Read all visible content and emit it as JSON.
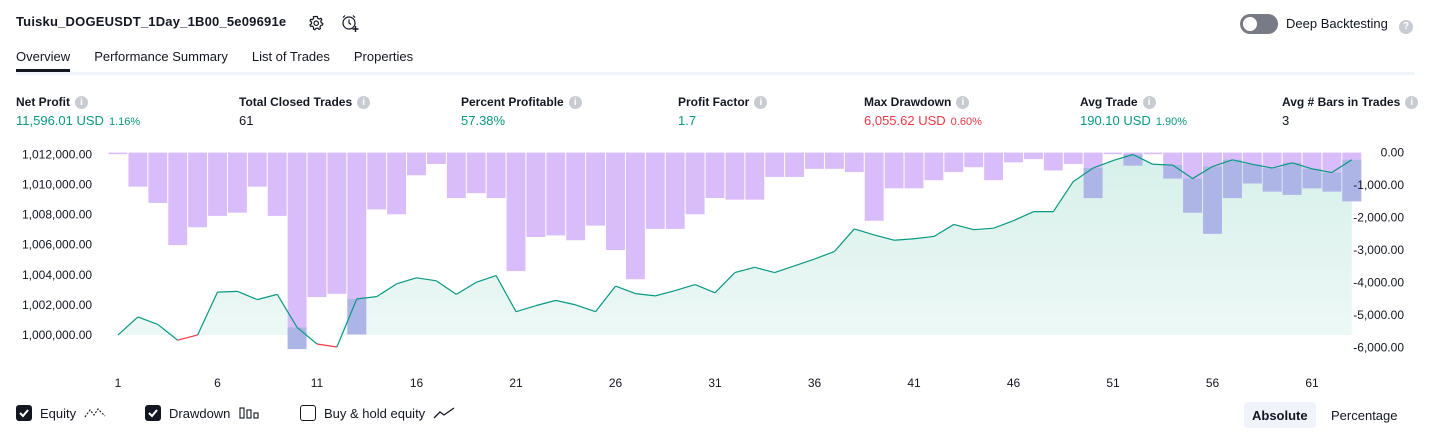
{
  "header": {
    "strategy_name": "Tuisku_DOGEUSDT_1Day_1B00_5e09691e",
    "settings_icon": "gear-icon",
    "alert_icon": "alarm-clock-plus-icon",
    "deep_backtesting_label": "Deep Backtesting",
    "deep_backtesting_on": false,
    "help_icon": "question-icon"
  },
  "tabs": [
    {
      "label": "Overview",
      "active": true
    },
    {
      "label": "Performance Summary",
      "active": false
    },
    {
      "label": "List of Trades",
      "active": false
    },
    {
      "label": "Properties",
      "active": false
    }
  ],
  "metrics": [
    {
      "label": "Net Profit",
      "value": "11,596.01 USD",
      "pct": "1.16%",
      "color": "#089981"
    },
    {
      "label": "Total Closed Trades",
      "value": "61",
      "pct": "",
      "color": "#131722"
    },
    {
      "label": "Percent Profitable",
      "value": "57.38%",
      "pct": "",
      "color": "#089981"
    },
    {
      "label": "Profit Factor",
      "value": "1.7",
      "pct": "",
      "color": "#089981"
    },
    {
      "label": "Max Drawdown",
      "value": "6,055.62 USD",
      "pct": "0.60%",
      "color": "#f23645"
    },
    {
      "label": "Avg Trade",
      "value": "190.10 USD",
      "pct": "1.90%",
      "color": "#089981"
    },
    {
      "label": "Avg # Bars in Trades",
      "value": "3",
      "pct": "",
      "color": "#131722"
    }
  ],
  "chart_data": {
    "type": "line",
    "x_ticks": [
      "1",
      "6",
      "11",
      "16",
      "21",
      "26",
      "31",
      "36",
      "41",
      "46",
      "51",
      "56",
      "61"
    ],
    "left_axis": {
      "ylim": [
        999000,
        1012300
      ],
      "ticks": [
        1012000,
        1010000,
        1008000,
        1006000,
        1004000,
        1002000,
        1000000
      ],
      "tick_labels": [
        "1,012,000.00",
        "1,010,000.00",
        "1,008,000.00",
        "1,006,000.00",
        "1,004,000.00",
        "1,002,000.00",
        "1,000,000.00"
      ]
    },
    "right_axis": {
      "ylim": [
        -6080,
        80
      ],
      "ticks": [
        0,
        -1000,
        -2000,
        -3000,
        -4000,
        -5000,
        -6000
      ],
      "tick_labels": [
        "0.00",
        "-1,000.00",
        "-2,000.00",
        "-3,000.00",
        "-4,000.00",
        "-5,000.00",
        "-6,000.00"
      ]
    },
    "series": [
      {
        "name": "Equity",
        "color": "#089981",
        "below_initial_color": "#f23645",
        "fill_color": "#d7f0ea",
        "x": [
          1,
          2,
          3,
          4,
          5,
          6,
          7,
          8,
          9,
          10,
          11,
          12,
          13,
          14,
          15,
          16,
          17,
          18,
          19,
          20,
          21,
          22,
          23,
          24,
          25,
          26,
          27,
          28,
          29,
          30,
          31,
          32,
          33,
          34,
          35,
          36,
          37,
          38,
          39,
          40,
          41,
          42,
          43,
          44,
          45,
          46,
          47,
          48,
          49,
          50,
          51,
          52,
          53,
          54,
          55,
          56,
          57,
          58,
          59,
          60,
          61,
          62,
          63
        ],
        "values": [
          1000000,
          1001200,
          1000700,
          999650,
          1000000,
          1002850,
          1002900,
          1002350,
          1002700,
          1000500,
          999400,
          999200,
          1002400,
          1002550,
          1003400,
          1003800,
          1003600,
          1002700,
          1003500,
          1003950,
          1001550,
          1001950,
          1002300,
          1002000,
          1001550,
          1003250,
          1002750,
          1002600,
          1002950,
          1003350,
          1002800,
          1004150,
          1004500,
          1004150,
          1004600,
          1005050,
          1005550,
          1007050,
          1006650,
          1006300,
          1006400,
          1006550,
          1007350,
          1007000,
          1007100,
          1007600,
          1008200,
          1008200,
          1010200,
          1011100,
          1011600,
          1012000,
          1011350,
          1011300,
          1010400,
          1011200,
          1011650,
          1011350,
          1011100,
          1011450,
          1011050,
          1010800,
          1011650
        ]
      },
      {
        "name": "Drawdown",
        "color": "#d9bdfa",
        "overlap_color": "#adb5e6",
        "x": [
          1,
          2,
          3,
          4,
          5,
          6,
          7,
          8,
          9,
          10,
          11,
          12,
          13,
          14,
          15,
          16,
          17,
          18,
          19,
          20,
          21,
          22,
          23,
          24,
          25,
          26,
          27,
          28,
          29,
          30,
          31,
          32,
          33,
          34,
          35,
          36,
          37,
          38,
          39,
          40,
          41,
          42,
          43,
          44,
          45,
          46,
          47,
          48,
          49,
          50,
          51,
          52,
          53,
          54,
          55,
          56,
          57,
          58,
          59,
          60,
          61,
          62,
          63
        ],
        "values": [
          -50,
          -1050,
          -1550,
          -2850,
          -2300,
          -1950,
          -1850,
          -1050,
          -1950,
          -6050,
          -4450,
          -4350,
          -5600,
          -1750,
          -1900,
          -700,
          -350,
          -1400,
          -1250,
          -1400,
          -3650,
          -2600,
          -2550,
          -2700,
          -2250,
          -3000,
          -3900,
          -2350,
          -2350,
          -1900,
          -1400,
          -1450,
          -1450,
          -750,
          -750,
          -500,
          -500,
          -600,
          -2100,
          -1100,
          -1100,
          -850,
          -600,
          -450,
          -850,
          -300,
          -200,
          -550,
          -350,
          -1400,
          -50,
          -400,
          -50,
          -800,
          -1850,
          -2500,
          -1400,
          -950,
          -1200,
          -1300,
          -1100,
          -1200,
          -1500
        ]
      }
    ],
    "legend_position": "bottom-left"
  },
  "legend": [
    {
      "label": "Equity",
      "checked": true,
      "icon": "equity-line-icon"
    },
    {
      "label": "Drawdown",
      "checked": true,
      "icon": "drawdown-bars-icon"
    },
    {
      "label": "Buy & hold equity",
      "checked": false,
      "icon": "buy-hold-line-icon"
    }
  ],
  "scale_toggle": {
    "absolute_label": "Absolute",
    "percentage_label": "Percentage",
    "selected": "Absolute"
  }
}
